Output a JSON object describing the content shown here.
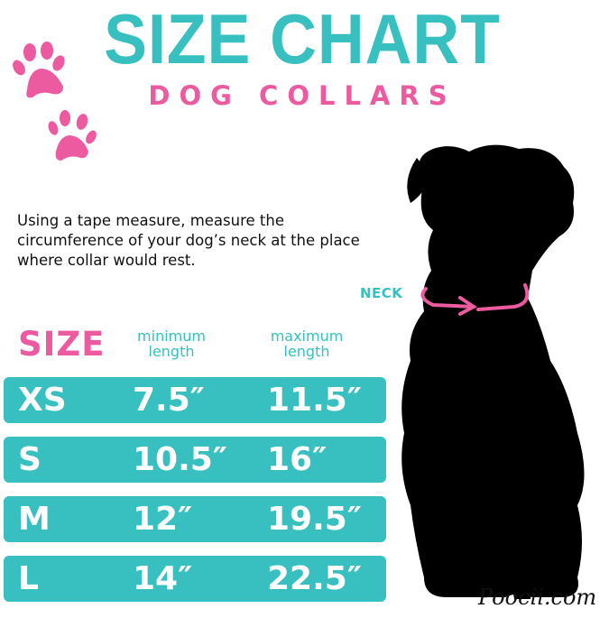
{
  "header": {
    "title": "SIZE CHART",
    "subtitle": "DOG COLLARS"
  },
  "instructions": "Using a tape measure, measure the circumference of your dog’s neck at the place where collar would rest.",
  "neck_label": "NECK",
  "table": {
    "headers": {
      "size": "SIZE",
      "min": "minimum length",
      "max": "maximum length"
    },
    "rows": [
      {
        "size": "XS",
        "min": "7.5″",
        "max": "11.5″"
      },
      {
        "size": "S",
        "min": "10.5″",
        "max": "16″"
      },
      {
        "size": "M",
        "min": "12″",
        "max": "19.5″"
      },
      {
        "size": "L",
        "min": "14″",
        "max": "22.5″"
      }
    ]
  },
  "brand": "Poocii.com",
  "colors": {
    "teal": "#38bfbf",
    "pink": "#ec5aa0",
    "silhouette": "#000000"
  },
  "icons": [
    "paw-print-icon",
    "dog-silhouette",
    "crown-icon"
  ]
}
